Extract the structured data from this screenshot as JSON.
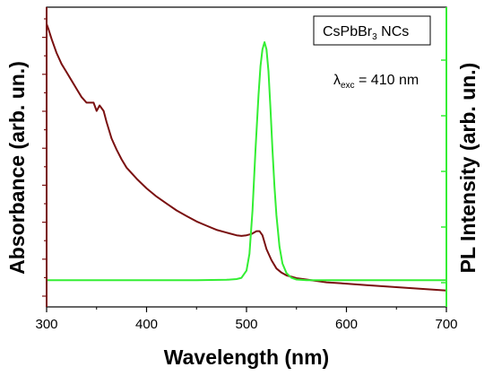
{
  "chart_data": {
    "type": "line",
    "xlabel": "Wavelength (nm)",
    "ylabel_left": "Absorbance (arb. un.)",
    "ylabel_right": "PL Intensity (arb. un.)",
    "xlim": [
      300,
      700
    ],
    "x_ticks": [
      "300",
      "400",
      "500",
      "600",
      "700"
    ],
    "ylim_left": [
      0,
      1
    ],
    "ylim_right": [
      0,
      1
    ],
    "legend_box": {
      "main": "CsPbBr",
      "sub": "3",
      "rest": " NCs"
    },
    "annotation": {
      "symbol": "λ",
      "sub": "exc",
      "rest": " = 410 nm"
    },
    "colors": {
      "absorbance": "#7a1010",
      "pl": "#33ee33",
      "right_axis": "#33ee33",
      "left_axis": "#7a1010"
    },
    "series": [
      {
        "axis": "left",
        "x": [
          300,
          302,
          305,
          310,
          315,
          320,
          325,
          330,
          335,
          340,
          343,
          347,
          350,
          353,
          357,
          360,
          365,
          370,
          375,
          380,
          390,
          400,
          410,
          420,
          430,
          440,
          450,
          460,
          470,
          480,
          490,
          495,
          500,
          505,
          510,
          513,
          516,
          520,
          525,
          530,
          535,
          540,
          545,
          550,
          560,
          580,
          600,
          620,
          640,
          660,
          680,
          700
        ],
        "y": [
          0.985,
          0.965,
          0.93,
          0.88,
          0.84,
          0.81,
          0.78,
          0.75,
          0.72,
          0.7,
          0.7,
          0.7,
          0.67,
          0.69,
          0.67,
          0.63,
          0.57,
          0.53,
          0.495,
          0.465,
          0.425,
          0.39,
          0.36,
          0.335,
          0.31,
          0.29,
          0.27,
          0.255,
          0.24,
          0.23,
          0.22,
          0.218,
          0.22,
          0.225,
          0.235,
          0.235,
          0.22,
          0.17,
          0.13,
          0.1,
          0.085,
          0.075,
          0.07,
          0.065,
          0.06,
          0.05,
          0.045,
          0.04,
          0.035,
          0.03,
          0.025,
          0.02
        ]
      },
      {
        "axis": "right",
        "x": [
          300,
          350,
          400,
          450,
          480,
          490,
          495,
          500,
          503,
          506,
          509,
          512,
          514,
          516,
          518,
          520,
          522,
          524,
          526,
          528,
          530,
          533,
          536,
          540,
          545,
          550,
          560,
          600,
          650,
          700
        ],
        "y": [
          0.01,
          0.01,
          0.01,
          0.01,
          0.012,
          0.015,
          0.02,
          0.05,
          0.12,
          0.3,
          0.55,
          0.78,
          0.9,
          0.97,
          1.0,
          0.97,
          0.88,
          0.72,
          0.55,
          0.4,
          0.28,
          0.15,
          0.08,
          0.04,
          0.02,
          0.013,
          0.01,
          0.01,
          0.01,
          0.01
        ]
      }
    ]
  }
}
